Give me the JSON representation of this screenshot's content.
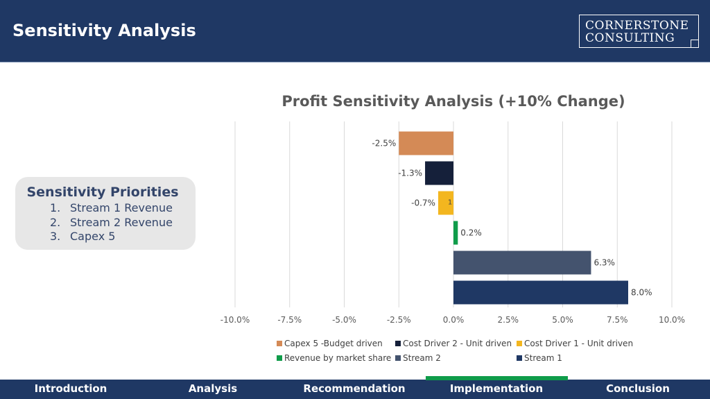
{
  "header": {
    "title": "Sensitivity Analysis",
    "logo_line1": "CORNERSTONE",
    "logo_line2": "CONSULTING"
  },
  "priorities": {
    "title": "Sensitivity Priorities",
    "items": [
      {
        "num": "1.",
        "label": "Stream 1 Revenue"
      },
      {
        "num": "2.",
        "label": "Stream 2 Revenue"
      },
      {
        "num": "3.",
        "label": "Capex 5"
      }
    ]
  },
  "colors": {
    "header_bg": "#1f3864",
    "accent_green": "#0f9c4a",
    "grid": "#d9d9d9"
  },
  "chart_data": {
    "type": "bar",
    "orientation": "horizontal",
    "title": "Profit Sensitivity Analysis (+10% Change)",
    "xlim": [
      -10,
      10
    ],
    "x_ticks": [
      "-10.0%",
      "-7.5%",
      "-5.0%",
      "-2.5%",
      "0.0%",
      "2.5%",
      "5.0%",
      "7.5%",
      "10.0%"
    ],
    "grid": true,
    "legend_position": "bottom",
    "stray_label": "1",
    "series": [
      {
        "name": "Capex 5 -Budget driven",
        "value": -2.5,
        "label": "-2.5%",
        "color": "#d48a56"
      },
      {
        "name": "Cost Driver 2 - Unit driven",
        "value": -1.3,
        "label": "-1.3%",
        "color": "#15203a"
      },
      {
        "name": "Cost Driver 1 - Unit driven",
        "value": -0.7,
        "label": "-0.7%",
        "color": "#f3b61f"
      },
      {
        "name": "Revenue by market share",
        "value": 0.2,
        "label": "0.2%",
        "color": "#0f9c4a"
      },
      {
        "name": "Stream 2",
        "value": 6.3,
        "label": "6.3%",
        "color": "#44536e"
      },
      {
        "name": "Stream 1",
        "value": 8.0,
        "label": "8.0%",
        "color": "#1f3864"
      }
    ]
  },
  "nav": {
    "items": [
      "Introduction",
      "Analysis",
      "Recommendation",
      "Implementation",
      "Conclusion"
    ],
    "active_index": 3
  }
}
